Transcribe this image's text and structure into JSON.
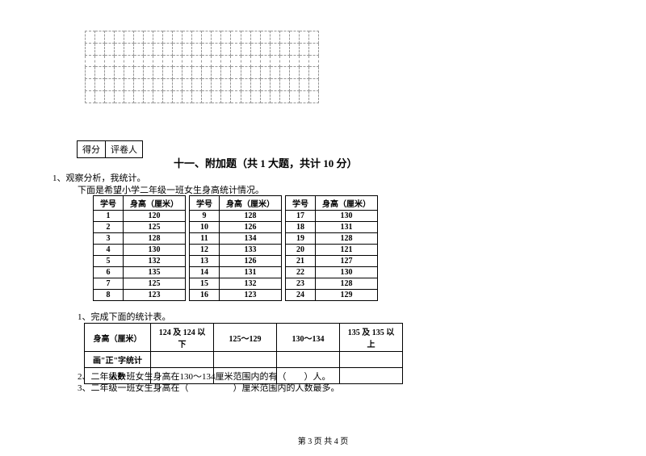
{
  "grid": {
    "rows": 6,
    "cols": 24
  },
  "score_labels": {
    "score": "得分",
    "reviewer": "评卷人"
  },
  "section_title": "十一、附加题（共 1 大题，共计 10 分）",
  "question": {
    "label": "1、观察分析，我统计。",
    "desc": "下面是希望小学二年级一班女生身高统计情况。"
  },
  "table_headers": {
    "id": "学号",
    "height": "身高（厘米）"
  },
  "data": {
    "group1": [
      {
        "id": "1",
        "h": "120"
      },
      {
        "id": "2",
        "h": "125"
      },
      {
        "id": "3",
        "h": "128"
      },
      {
        "id": "4",
        "h": "130"
      },
      {
        "id": "5",
        "h": "132"
      },
      {
        "id": "6",
        "h": "135"
      },
      {
        "id": "7",
        "h": "125"
      },
      {
        "id": "8",
        "h": "123"
      }
    ],
    "group2": [
      {
        "id": "9",
        "h": "128"
      },
      {
        "id": "10",
        "h": "126"
      },
      {
        "id": "11",
        "h": "134"
      },
      {
        "id": "12",
        "h": "133"
      },
      {
        "id": "13",
        "h": "126"
      },
      {
        "id": "14",
        "h": "131"
      },
      {
        "id": "15",
        "h": "132"
      },
      {
        "id": "16",
        "h": "123"
      }
    ],
    "group3": [
      {
        "id": "17",
        "h": "130"
      },
      {
        "id": "18",
        "h": "131"
      },
      {
        "id": "19",
        "h": "128"
      },
      {
        "id": "20",
        "h": "121"
      },
      {
        "id": "21",
        "h": "127"
      },
      {
        "id": "22",
        "h": "130"
      },
      {
        "id": "23",
        "h": "128"
      },
      {
        "id": "24",
        "h": "129"
      }
    ]
  },
  "sub1": "1、完成下面的统计表。",
  "summary": {
    "row_header": "身高（厘米）",
    "cols": [
      "124 及 124 以下",
      "125～129",
      "130～134",
      "135 及 135 以上"
    ],
    "row2": "画\"正\"字统计",
    "row3": "人数"
  },
  "sub2": "2、二年级一班女生身高在130～134厘米范围内的有（　　）人。",
  "sub3": "3、二年级一班女生身高在（　　　　　）厘米范围内的人数最多。",
  "footer": "第 3 页 共 4 页"
}
